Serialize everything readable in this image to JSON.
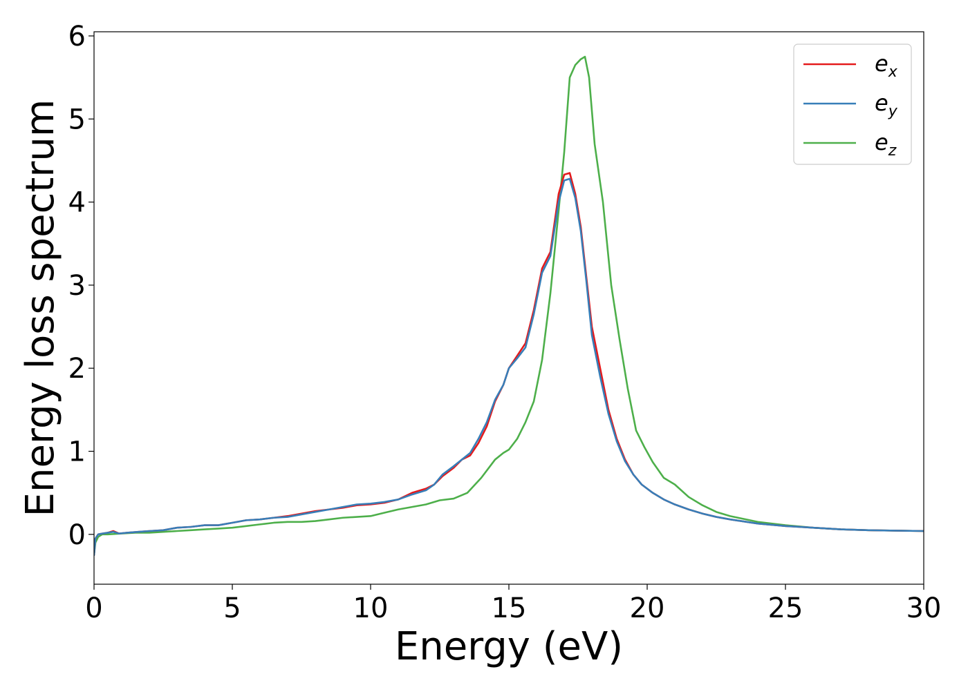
{
  "chart_data": {
    "type": "line",
    "title": "",
    "xlabel": "Energy (eV)",
    "ylabel": "Energy loss spectrum",
    "xlim": [
      0,
      30
    ],
    "ylim": [
      -0.6,
      6.05
    ],
    "xticks": [
      0,
      5,
      10,
      15,
      20,
      25,
      30
    ],
    "yticks": [
      0,
      1,
      2,
      3,
      4,
      5,
      6
    ],
    "xtick_labels": [
      "0",
      "5",
      "10",
      "15",
      "20",
      "25",
      "30"
    ],
    "ytick_labels": [
      "0",
      "1",
      "2",
      "3",
      "4",
      "5",
      "6"
    ],
    "grid": false,
    "legend_position": "top-right",
    "series": [
      {
        "name": "e_x",
        "legend_main": "e",
        "legend_sub": "x",
        "color": "#e41a1c",
        "x": [
          0,
          0.05,
          0.15,
          0.3,
          0.5,
          0.7,
          0.9,
          1.2,
          1.6,
          2.0,
          2.5,
          3.0,
          3.5,
          4.0,
          4.5,
          5.0,
          5.5,
          6.0,
          6.5,
          7.0,
          7.5,
          8.0,
          8.5,
          9.0,
          9.5,
          10.0,
          10.5,
          11.0,
          11.5,
          12.0,
          12.3,
          12.6,
          13.0,
          13.3,
          13.6,
          13.9,
          14.2,
          14.5,
          14.8,
          15.0,
          15.3,
          15.6,
          15.9,
          16.2,
          16.5,
          16.8,
          17.0,
          17.2,
          17.4,
          17.6,
          17.8,
          18.0,
          18.3,
          18.6,
          18.9,
          19.2,
          19.5,
          19.8,
          20.2,
          20.6,
          21.0,
          21.5,
          22.0,
          22.5,
          23.0,
          24.0,
          25.0,
          26.0,
          27.0,
          28.0,
          29.0,
          30.0
        ],
        "y": [
          -0.25,
          -0.05,
          0.0,
          0.01,
          0.02,
          0.04,
          0.01,
          0.02,
          0.03,
          0.04,
          0.05,
          0.08,
          0.09,
          0.11,
          0.11,
          0.14,
          0.17,
          0.18,
          0.2,
          0.22,
          0.25,
          0.28,
          0.3,
          0.32,
          0.35,
          0.36,
          0.38,
          0.42,
          0.5,
          0.55,
          0.6,
          0.7,
          0.8,
          0.9,
          0.95,
          1.1,
          1.3,
          1.6,
          1.8,
          2.0,
          2.15,
          2.3,
          2.7,
          3.2,
          3.4,
          4.1,
          4.33,
          4.35,
          4.1,
          3.7,
          3.1,
          2.5,
          2.0,
          1.5,
          1.15,
          0.9,
          0.72,
          0.6,
          0.5,
          0.42,
          0.36,
          0.3,
          0.25,
          0.21,
          0.18,
          0.13,
          0.1,
          0.08,
          0.06,
          0.05,
          0.045,
          0.04
        ]
      },
      {
        "name": "e_y",
        "legend_main": "e",
        "legend_sub": "y",
        "color": "#377eb8",
        "x": [
          0,
          0.05,
          0.15,
          0.3,
          0.5,
          0.7,
          0.9,
          1.2,
          1.6,
          2.0,
          2.5,
          3.0,
          3.5,
          4.0,
          4.5,
          5.0,
          5.5,
          6.0,
          6.5,
          7.0,
          7.5,
          8.0,
          8.5,
          9.0,
          9.5,
          10.0,
          10.5,
          11.0,
          11.5,
          12.0,
          12.3,
          12.6,
          13.0,
          13.3,
          13.6,
          13.9,
          14.2,
          14.5,
          14.8,
          15.0,
          15.3,
          15.6,
          15.9,
          16.2,
          16.5,
          16.8,
          17.0,
          17.2,
          17.4,
          17.6,
          17.8,
          18.0,
          18.3,
          18.6,
          18.9,
          19.2,
          19.5,
          19.8,
          20.2,
          20.6,
          21.0,
          21.5,
          22.0,
          22.5,
          23.0,
          24.0,
          25.0,
          26.0,
          27.0,
          28.0,
          29.0,
          30.0
        ],
        "y": [
          -0.25,
          -0.05,
          0.0,
          0.01,
          0.02,
          0.03,
          0.01,
          0.02,
          0.03,
          0.04,
          0.05,
          0.08,
          0.09,
          0.11,
          0.11,
          0.14,
          0.17,
          0.18,
          0.2,
          0.21,
          0.24,
          0.27,
          0.3,
          0.33,
          0.36,
          0.37,
          0.39,
          0.42,
          0.48,
          0.53,
          0.6,
          0.72,
          0.82,
          0.9,
          0.98,
          1.15,
          1.35,
          1.62,
          1.8,
          2.0,
          2.12,
          2.25,
          2.65,
          3.15,
          3.35,
          4.0,
          4.26,
          4.28,
          4.05,
          3.65,
          3.05,
          2.4,
          1.9,
          1.45,
          1.12,
          0.88,
          0.72,
          0.6,
          0.5,
          0.42,
          0.36,
          0.3,
          0.25,
          0.21,
          0.18,
          0.13,
          0.1,
          0.08,
          0.06,
          0.05,
          0.045,
          0.04
        ]
      },
      {
        "name": "e_z",
        "legend_main": "e",
        "legend_sub": "z",
        "color": "#4daf4a",
        "x": [
          0,
          0.05,
          0.15,
          0.3,
          0.5,
          1.0,
          1.5,
          2.0,
          2.5,
          3.0,
          3.5,
          4.0,
          4.5,
          5.0,
          5.5,
          6.0,
          6.5,
          7.0,
          7.5,
          8.0,
          8.5,
          9.0,
          9.5,
          10.0,
          10.5,
          11.0,
          11.5,
          12.0,
          12.5,
          13.0,
          13.5,
          14.0,
          14.5,
          14.8,
          15.0,
          15.3,
          15.6,
          15.9,
          16.2,
          16.5,
          16.8,
          17.0,
          17.2,
          17.4,
          17.6,
          17.75,
          17.9,
          18.1,
          18.4,
          18.7,
          19.0,
          19.3,
          19.6,
          19.9,
          20.2,
          20.6,
          21.0,
          21.5,
          22.0,
          22.5,
          23.0,
          24.0,
          25.0,
          26.0,
          27.0,
          28.0,
          29.0,
          30.0
        ],
        "y": [
          -0.25,
          -0.1,
          -0.03,
          0.0,
          0.0,
          0.01,
          0.02,
          0.02,
          0.03,
          0.04,
          0.05,
          0.06,
          0.07,
          0.08,
          0.1,
          0.12,
          0.14,
          0.15,
          0.15,
          0.16,
          0.18,
          0.2,
          0.21,
          0.22,
          0.26,
          0.3,
          0.33,
          0.36,
          0.41,
          0.43,
          0.5,
          0.68,
          0.9,
          0.98,
          1.02,
          1.15,
          1.35,
          1.6,
          2.1,
          2.9,
          3.9,
          4.6,
          5.5,
          5.65,
          5.72,
          5.75,
          5.5,
          4.7,
          4.0,
          3.0,
          2.35,
          1.75,
          1.25,
          1.05,
          0.87,
          0.68,
          0.6,
          0.45,
          0.35,
          0.27,
          0.22,
          0.15,
          0.11,
          0.08,
          0.06,
          0.05,
          0.045,
          0.04
        ]
      }
    ]
  }
}
